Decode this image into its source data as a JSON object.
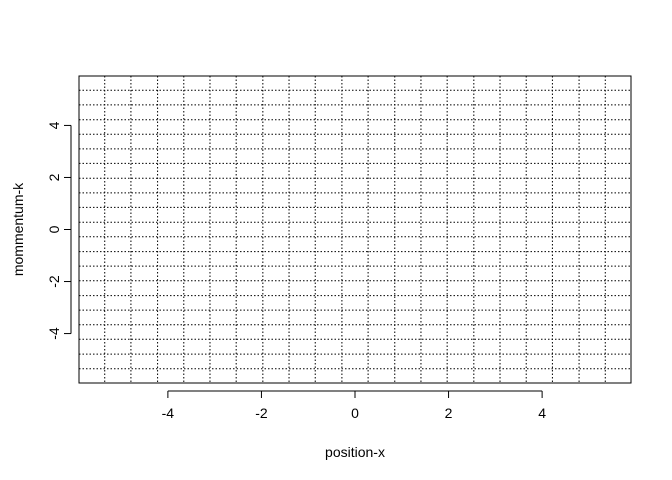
{
  "chart_data": {
    "type": "scatter",
    "title": "",
    "xlabel": "position-x",
    "ylabel": "mommentum-k",
    "xlim": [
      -5.9,
      5.9
    ],
    "ylim": [
      -5.9,
      5.9
    ],
    "x_ticks": [
      -4,
      -2,
      0,
      2,
      4
    ],
    "x_tick_labels": [
      "-4",
      "-2",
      "0",
      "2",
      "4"
    ],
    "y_ticks": [
      -4,
      -2,
      0,
      2,
      4
    ],
    "y_tick_labels": [
      "-4",
      "-2",
      "0",
      "2",
      "4"
    ],
    "grid": true,
    "grid_style": "dotted",
    "grid_x": [
      -5.35,
      -4.79,
      -4.22,
      -3.66,
      -3.1,
      -2.54,
      -1.97,
      -1.41,
      -0.85,
      -0.28,
      0.28,
      0.85,
      1.41,
      1.97,
      2.54,
      3.1,
      3.66,
      4.22,
      4.79,
      5.35
    ],
    "grid_y": [
      -5.35,
      -4.79,
      -4.22,
      -3.66,
      -3.1,
      -2.54,
      -1.97,
      -1.41,
      -0.85,
      -0.28,
      0.28,
      0.85,
      1.41,
      1.97,
      2.54,
      3.1,
      3.66,
      4.22,
      4.79,
      5.35
    ],
    "series": []
  }
}
